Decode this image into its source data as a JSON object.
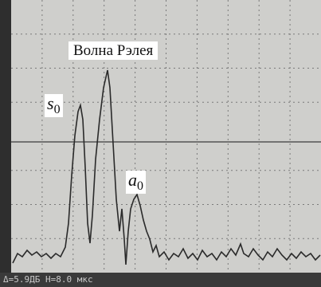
{
  "title": "Волна Рэлея",
  "labels": [
    {
      "text": "s",
      "subscript": "0"
    },
    {
      "text": "a",
      "subscript": "0"
    }
  ],
  "status": "Δ=5.9ДБ Н=8.0 мкс"
}
